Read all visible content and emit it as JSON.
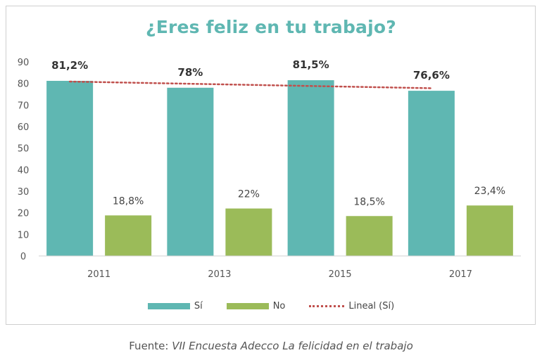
{
  "colors": {
    "si": "#5fb7b2",
    "no": "#9bbb59",
    "trend": "#c0504d",
    "title": "#5fb7b2",
    "axis_text": "#555555"
  },
  "chart_data": {
    "type": "bar",
    "title": "¿Eres feliz en tu trabajo?",
    "xlabel": "",
    "ylabel": "",
    "categories": [
      "2011",
      "2013",
      "2015",
      "2017"
    ],
    "ylim": [
      0,
      90
    ],
    "yticks": [
      0,
      10,
      20,
      30,
      40,
      50,
      60,
      70,
      80,
      90
    ],
    "grid": false,
    "legend_position": "bottom",
    "series": [
      {
        "name": "Sí",
        "values": [
          81.2,
          78,
          81.5,
          76.6
        ],
        "labels": [
          "81,2%",
          "78%",
          "81,5%",
          "76,6%"
        ]
      },
      {
        "name": "No",
        "values": [
          18.8,
          22,
          18.5,
          23.4
        ],
        "labels": [
          "18,8%",
          "22%",
          "18,5%",
          "23,4%"
        ]
      }
    ],
    "trendline": {
      "name": "Lineal (Sí)",
      "style": "dotted",
      "of_series": "Sí"
    }
  },
  "source": {
    "prefix": "Fuente:",
    "text": "VII Encuesta Adecco La felicidad en el trabajo"
  }
}
